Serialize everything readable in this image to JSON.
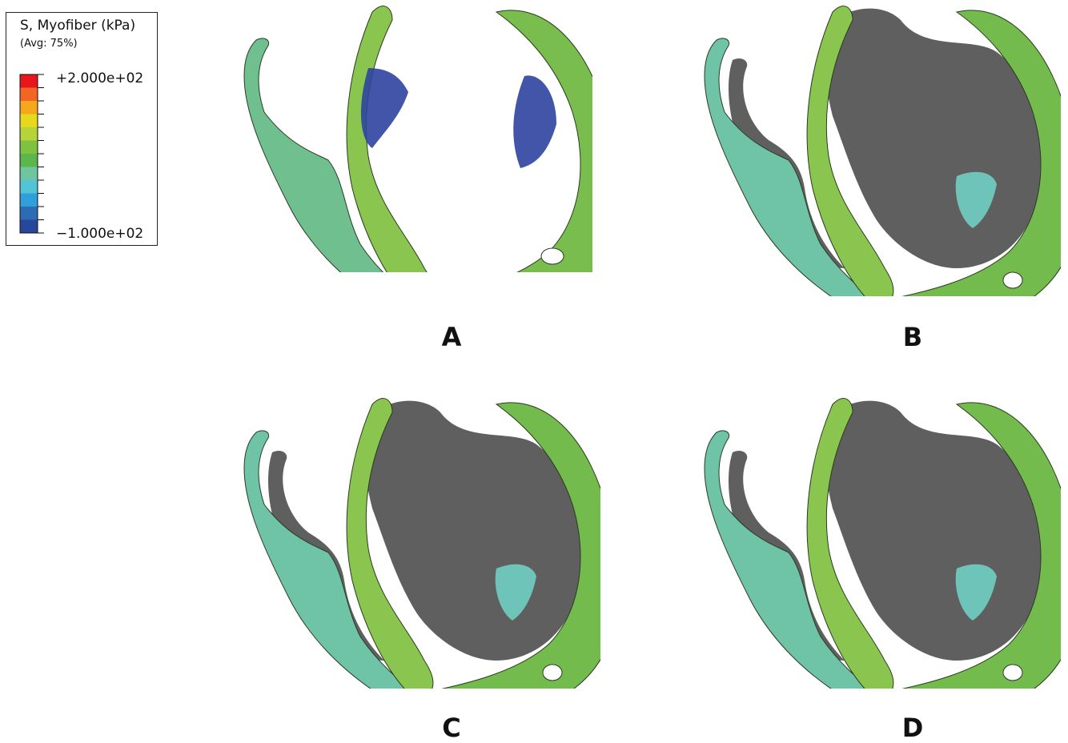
{
  "legend": {
    "title": "S, Myofiber  (kPa)",
    "subtitle": "(Avg: 75%)",
    "max_label": "+2.000e+02",
    "min_label": "−1.000e+02",
    "colors": [
      "#e8171c",
      "#f26522",
      "#f5a81c",
      "#e6d81c",
      "#b7d33a",
      "#7fc241",
      "#5db64c",
      "#6dc6a0",
      "#52c4d6",
      "#2ea1dc",
      "#2b6cb5",
      "#27479b"
    ]
  },
  "panels": [
    {
      "label": "A",
      "mode": "deformed-only"
    },
    {
      "label": "B",
      "mode": "with-reference"
    },
    {
      "label": "C",
      "mode": "with-reference"
    },
    {
      "label": "D",
      "mode": "with-reference"
    }
  ],
  "colors": {
    "myocardium": "#74bb4e",
    "myocardium_light": "#8ac64f",
    "reference_shadow": "#5f5f5f",
    "low_stress": "#2d43a0",
    "mid_low_stress": "#6ec4b9"
  }
}
